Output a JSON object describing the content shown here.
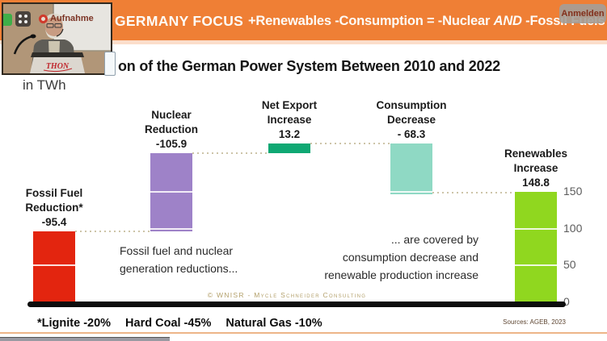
{
  "banner": {
    "title": "GERMANY FOCUS",
    "equation_pre": "+Renewables -Consumption = -Nuclear ",
    "equation_and": "AND",
    "equation_post": " -Fossil Fuels",
    "bg_color": "#ef7f35",
    "signin_label": "Anmelden"
  },
  "webcam": {
    "recording_label": "Aufnahme",
    "podium_logo": "THON"
  },
  "slide": {
    "title": "on of the German Power System Between 2010 and 2022",
    "unit_label": "in TWh",
    "annotation_left": {
      "line1": "Fossil fuel and nuclear",
      "line2": "generation reductions..."
    },
    "annotation_right": {
      "line1": "... are covered by",
      "line2": "consumption decrease and",
      "line3": "renewable production increase"
    },
    "copyright": "© WNISR - Mycle Schneider Consulting",
    "footnotes": {
      "lignite": "*Lignite -20%",
      "hard_coal": "Hard Coal -45%",
      "natural_gas": "Natural Gas -10%"
    },
    "sources": "Sources: AGEB, 2023"
  },
  "chart_data": {
    "type": "bar",
    "subtype": "waterfall",
    "title": "on of the German Power System Between 2010 and 2022",
    "unit": "TWh",
    "categories": [
      "Fossil Fuel Reduction*",
      "Nuclear Reduction",
      "Net Export Increase",
      "Consumption Decrease",
      "Renewables Increase"
    ],
    "values": [
      -95.4,
      -105.9,
      13.2,
      -68.3,
      148.8
    ],
    "bars": [
      {
        "label_lines": [
          "Fossil Fuel",
          "Reduction*",
          "-95.4"
        ],
        "value": -95.4,
        "from": 0,
        "to": 95.4,
        "color": "#e3250f"
      },
      {
        "label_lines": [
          "Nuclear",
          "Reduction",
          "-105.9"
        ],
        "value": -105.9,
        "from": 95.4,
        "to": 201.3,
        "color": "#9e82c8"
      },
      {
        "label_lines": [
          "Net Export",
          "Increase",
          "13.2"
        ],
        "value": 13.2,
        "from": 201.3,
        "to": 214.5,
        "color": "#0fa873"
      },
      {
        "label_lines": [
          "Consumption",
          "Decrease",
          "- 68.3"
        ],
        "value": -68.3,
        "from": 146.2,
        "to": 214.5,
        "color": "#8fd9c4"
      },
      {
        "label_lines": [
          "Renewables",
          "Increase",
          "148.8"
        ],
        "value": 148.8,
        "from": 0,
        "to": 148.8,
        "color": "#90d71f"
      }
    ],
    "connector_levels": [
      95.4,
      201.3,
      214.5,
      147.5
    ],
    "segment_line_levels": [
      50,
      100,
      150
    ],
    "yticks": [
      0,
      50,
      100,
      150
    ],
    "ylim": [
      0,
      160
    ],
    "axis_side": "right",
    "grid": false,
    "legend": false
  }
}
